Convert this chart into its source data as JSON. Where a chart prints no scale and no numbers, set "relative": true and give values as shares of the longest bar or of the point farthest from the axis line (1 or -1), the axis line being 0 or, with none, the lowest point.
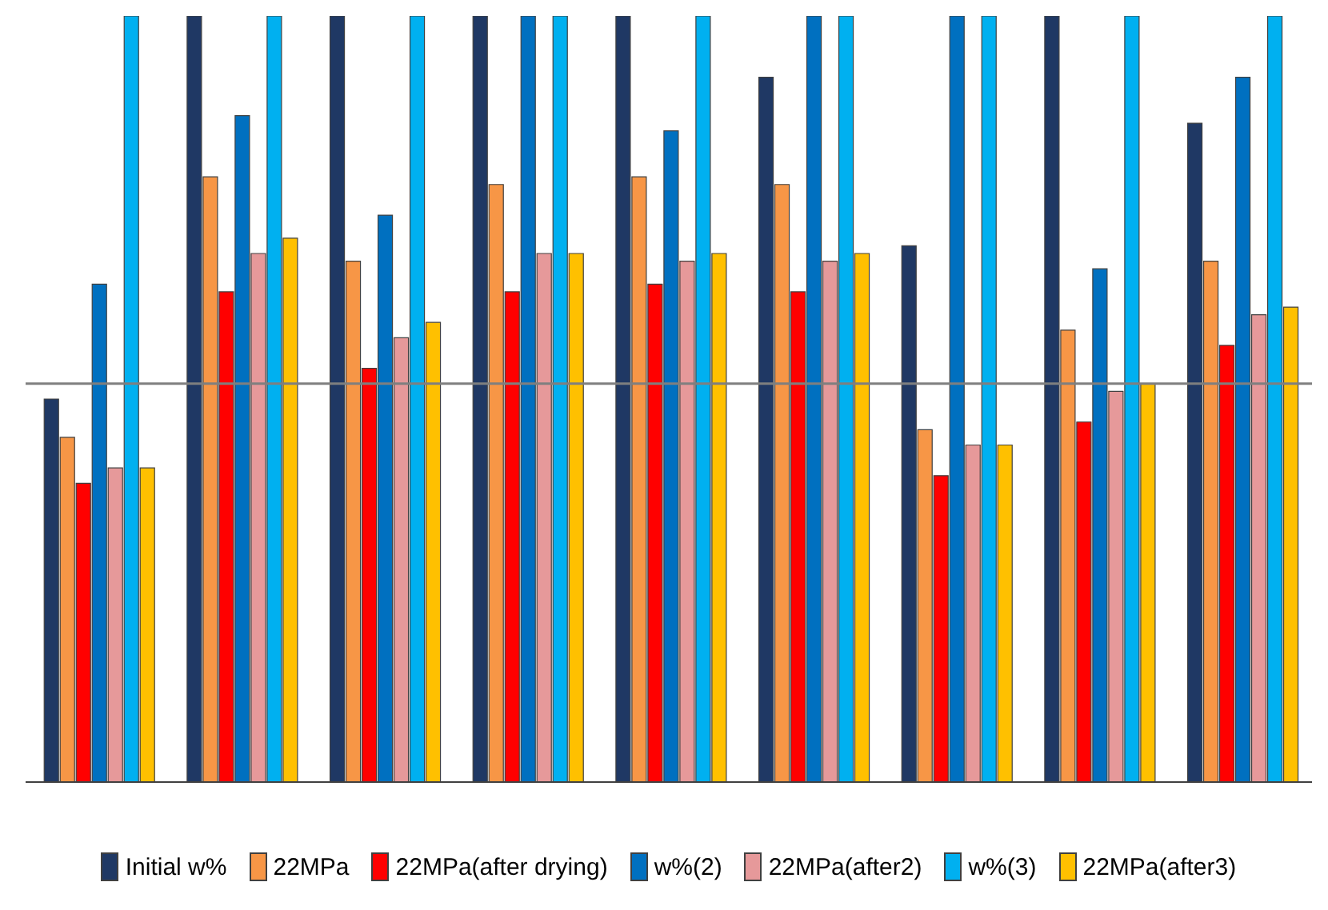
{
  "chart_data": {
    "type": "bar",
    "relative": true,
    "categories": [
      null,
      null,
      null,
      null,
      null,
      null,
      null,
      null,
      null
    ],
    "series": [
      {
        "name": "Initial w%",
        "color": "#1f3864",
        "values": [
          0.5,
          1,
          1,
          1,
          1,
          0.92,
          0.7,
          1,
          0.86
        ]
      },
      {
        "name": "22MPa",
        "color": "#f79646",
        "values": [
          0.45,
          0.79,
          0.68,
          0.78,
          0.79,
          0.78,
          0.46,
          0.59,
          0.68
        ]
      },
      {
        "name": "22MPa(after drying)",
        "color": "#ff0000",
        "values": [
          0.39,
          0.64,
          0.54,
          0.64,
          0.65,
          0.64,
          0.4,
          0.47,
          0.57
        ]
      },
      {
        "name": "w%(2)",
        "color": "#0070c0",
        "values": [
          0.65,
          0.87,
          0.74,
          1,
          0.85,
          1,
          1,
          0.67,
          0.92
        ]
      },
      {
        "name": "22MPa(after2)",
        "color": "#e6999a",
        "values": [
          0.41,
          0.69,
          0.58,
          0.69,
          0.68,
          0.68,
          0.44,
          0.51,
          0.61
        ]
      },
      {
        "name": "w%(3)",
        "color": "#00b0f0",
        "values": [
          1,
          1,
          1,
          1,
          1,
          1,
          1,
          1,
          1
        ]
      },
      {
        "name": "22MPa(after3)",
        "color": "#ffc000",
        "values": [
          0.41,
          0.71,
          0.6,
          0.69,
          0.69,
          0.69,
          0.44,
          0.52,
          0.62
        ]
      }
    ],
    "ref_lines": [
      {
        "axis": "y",
        "value": 0.52,
        "color": "#7f7f7f"
      }
    ],
    "legend": "bottom"
  }
}
